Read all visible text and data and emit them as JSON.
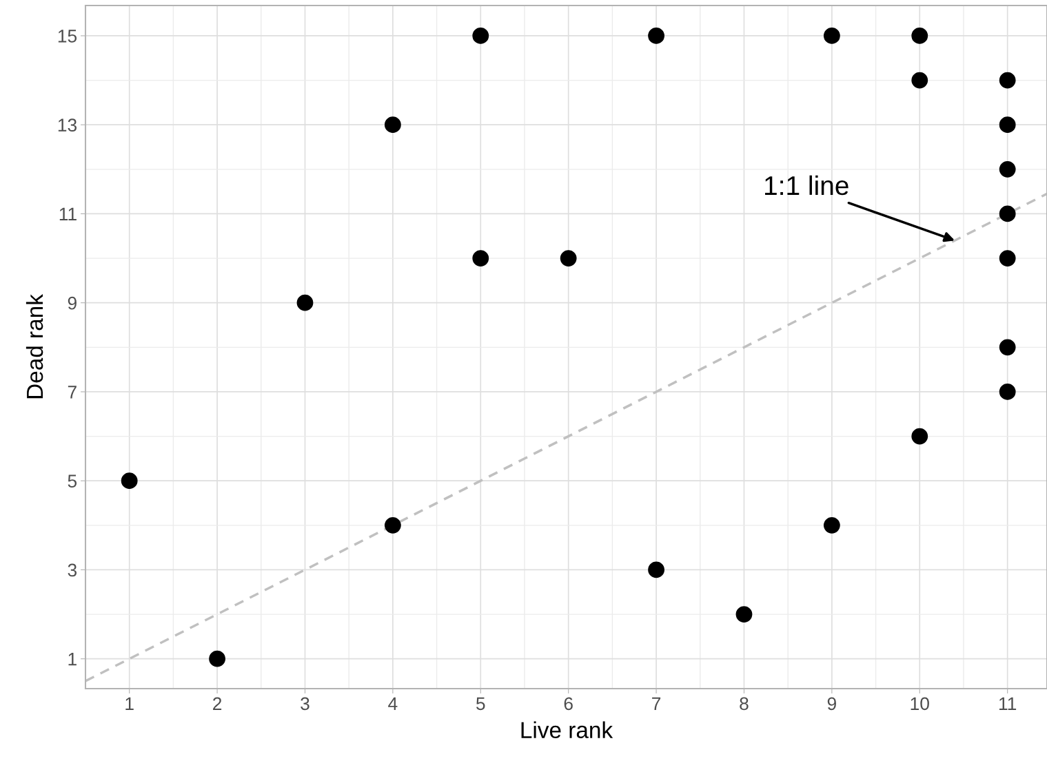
{
  "chart_data": {
    "type": "scatter",
    "xlabel": "Live rank",
    "ylabel": "Dead rank",
    "xlim": [
      0.5,
      11.45
    ],
    "ylim": [
      0.33,
      15.68
    ],
    "xticks": [
      1,
      2,
      3,
      4,
      5,
      6,
      7,
      8,
      9,
      10,
      11
    ],
    "yticks": [
      1,
      3,
      5,
      7,
      9,
      11,
      13,
      15
    ],
    "grid": true,
    "marker": "circle",
    "series": [
      {
        "color": "#000000",
        "x": [
          1,
          2,
          3,
          4,
          4,
          5,
          5,
          6,
          7,
          7,
          8,
          9,
          9,
          10,
          10,
          10,
          11,
          11,
          11,
          11,
          11,
          11,
          11
        ],
        "values": [
          5,
          1,
          9,
          13,
          4,
          15,
          10,
          10,
          15,
          3,
          2,
          15,
          4,
          15,
          14,
          6,
          14,
          13,
          12,
          11,
          10,
          8,
          7
        ]
      },
      {
        "type": "line",
        "color": "#c0c0c0",
        "line_style": "dashed",
        "marker": "none",
        "x": [
          0.5,
          11.45
        ],
        "values": [
          0.5,
          11.45
        ]
      }
    ],
    "annotations": [
      {
        "text": "1:1 line",
        "x": 10.4,
        "y": 10.4
      }
    ]
  }
}
